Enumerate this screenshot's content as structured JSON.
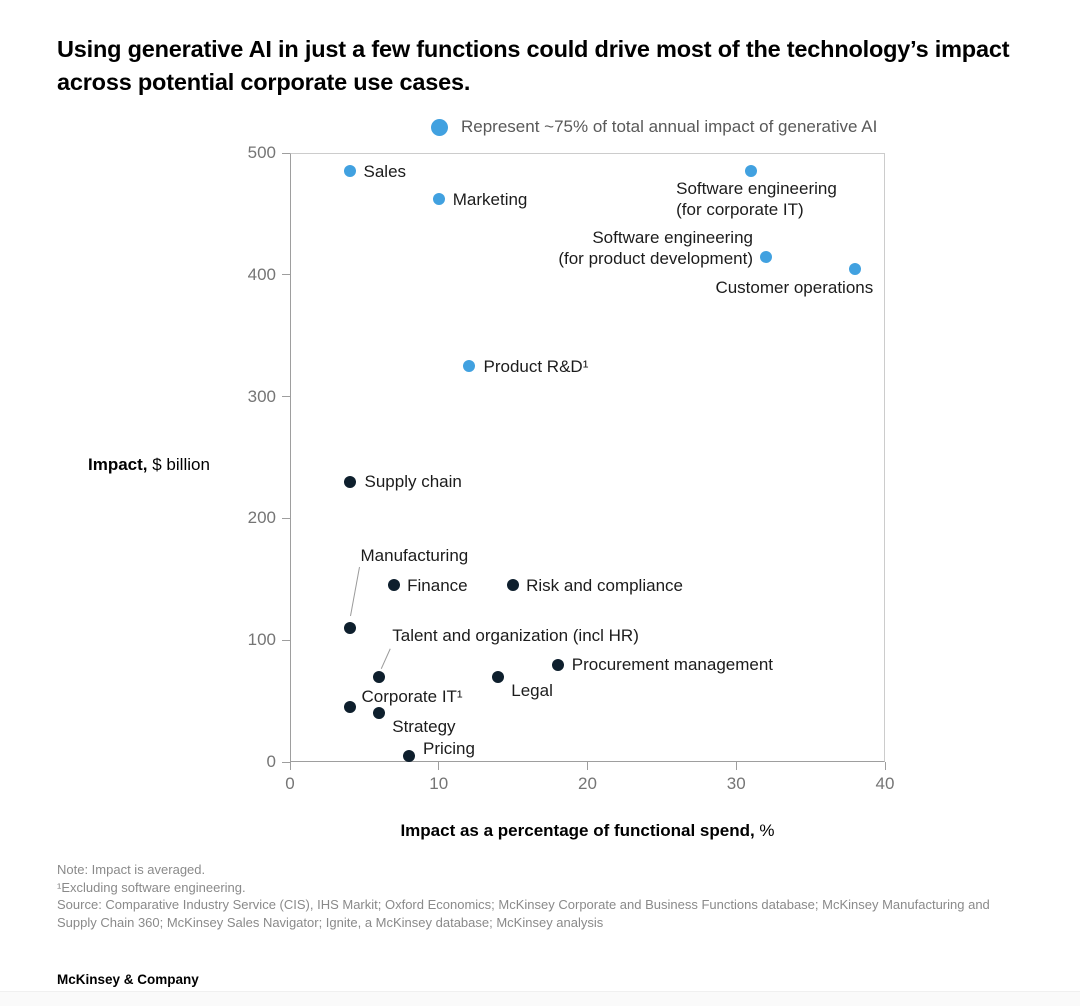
{
  "title": "Using generative AI in just a few functions could drive most of the technology’s impact across potential corporate use cases.",
  "legend": {
    "label": "Represent ~75% of total annual impact of generative AI"
  },
  "colors": {
    "highlight_blue": "#41A1E0",
    "default_navy": "#0E1F2D",
    "axis_line": "#9e9e9e",
    "plot_border": "#cccccc",
    "tick_label": "#757575",
    "legend_text": "#595959",
    "data_label": "#1c1c1c",
    "note_text": "#8a8a8a",
    "leader_line": "#9b9b9b"
  },
  "chart_data": {
    "type": "scatter",
    "title": "Using generative AI in just a few functions could drive most of the technology’s impact across potential corporate use cases.",
    "xlabel": "Impact as a percentage of functional spend, %",
    "xlabel_main": "Impact as a percentage of functional spend,",
    "xlabel_unit": " %",
    "ylabel": "Impact, $ billion",
    "ylabel_main": "Impact,",
    "ylabel_unit": " $ billion",
    "xlim": [
      0,
      40
    ],
    "ylim": [
      0,
      500
    ],
    "x_ticks": [
      0,
      10,
      20,
      30,
      40
    ],
    "y_ticks": [
      0,
      100,
      200,
      300,
      400,
      500
    ],
    "grid": false,
    "legend_position": "top",
    "legend_entries": [
      {
        "label": "Represent ~75% of total annual impact of generative AI",
        "color": "#41A1E0"
      }
    ],
    "series": [
      {
        "id": "highlighted-75pct",
        "color": "#41A1E0",
        "points": [
          {
            "label": "Sales",
            "x": 4,
            "y": 485,
            "lp": {
              "anchor": "left",
              "dx": 14,
              "dy": 0
            }
          },
          {
            "label": "Marketing",
            "x": 10,
            "y": 462,
            "lp": {
              "anchor": "left",
              "dx": 14,
              "dy": 0
            }
          },
          {
            "label": "Software engineering (for corporate IT)",
            "label_lines": [
              "Software engineering",
              "(for corporate IT)"
            ],
            "x": 31,
            "y": 485,
            "lp": {
              "anchor": "left",
              "dx": -75,
              "dy": 28
            }
          },
          {
            "label": "Software engineering (for product development)",
            "label_lines": [
              "Software engineering",
              "(for product development)"
            ],
            "x": 32,
            "y": 415,
            "lp": {
              "anchor": "right",
              "dx": -13,
              "dy": -9
            }
          },
          {
            "label": "Customer operations",
            "x": 38,
            "y": 405,
            "lp": {
              "anchor": "right",
              "dx": 18,
              "dy": 19
            }
          },
          {
            "label": "Product R&D¹",
            "x": 12,
            "y": 325,
            "lp": {
              "anchor": "left",
              "dx": 15,
              "dy": 0
            }
          }
        ]
      },
      {
        "id": "other-functions",
        "color": "#0E1F2D",
        "points": [
          {
            "label": "Supply chain",
            "x": 4,
            "y": 230,
            "lp": {
              "anchor": "left",
              "dx": 15,
              "dy": 0
            }
          },
          {
            "label": "Manufacturing",
            "x": 4,
            "y": 110,
            "lp": {
              "anchor": "left",
              "dx": 11,
              "dy": -73,
              "leader": {
                "x1": 10,
                "y1": -61,
                "x2": 1,
                "y2": -12
              }
            }
          },
          {
            "label": "Finance",
            "x": 7,
            "y": 145,
            "lp": {
              "anchor": "left",
              "dx": 13,
              "dy": 0
            }
          },
          {
            "label": "Risk and compliance",
            "x": 15,
            "y": 145,
            "lp": {
              "anchor": "left",
              "dx": 13,
              "dy": 0
            }
          },
          {
            "label": "Talent and organization (incl HR)",
            "x": 6,
            "y": 70,
            "lp": {
              "anchor": "left",
              "dx": 13,
              "dy": -41,
              "leader": {
                "x1": 11,
                "y1": -28,
                "x2": 2,
                "y2": -8
              }
            }
          },
          {
            "label": "Procurement management",
            "x": 18,
            "y": 80,
            "lp": {
              "anchor": "left",
              "dx": 14,
              "dy": 0
            }
          },
          {
            "label": "Legal",
            "x": 14,
            "y": 70,
            "lp": {
              "anchor": "left",
              "dx": 13,
              "dy": 14
            }
          },
          {
            "label": "Corporate IT¹",
            "x": 4,
            "y": 45,
            "lp": {
              "anchor": "left",
              "dx": 12,
              "dy": -11
            }
          },
          {
            "label": "Strategy",
            "x": 6,
            "y": 40,
            "lp": {
              "anchor": "left",
              "dx": 13,
              "dy": 13
            }
          },
          {
            "label": "Pricing",
            "x": 8,
            "y": 5,
            "lp": {
              "anchor": "left",
              "dx": 14,
              "dy": -7
            }
          }
        ]
      }
    ]
  },
  "notes": {
    "note": "Note: Impact is averaged.",
    "footnote": "¹Excluding software engineering.",
    "source": "Source: Comparative Industry Service (CIS), IHS Markit; Oxford Economics; McKinsey Corporate and Business Functions database; McKinsey Manufacturing and Supply Chain 360; McKinsey Sales Navigator; Ignite, a McKinsey database; McKinsey analysis"
  },
  "footer": {
    "brand": "McKinsey & Company"
  }
}
